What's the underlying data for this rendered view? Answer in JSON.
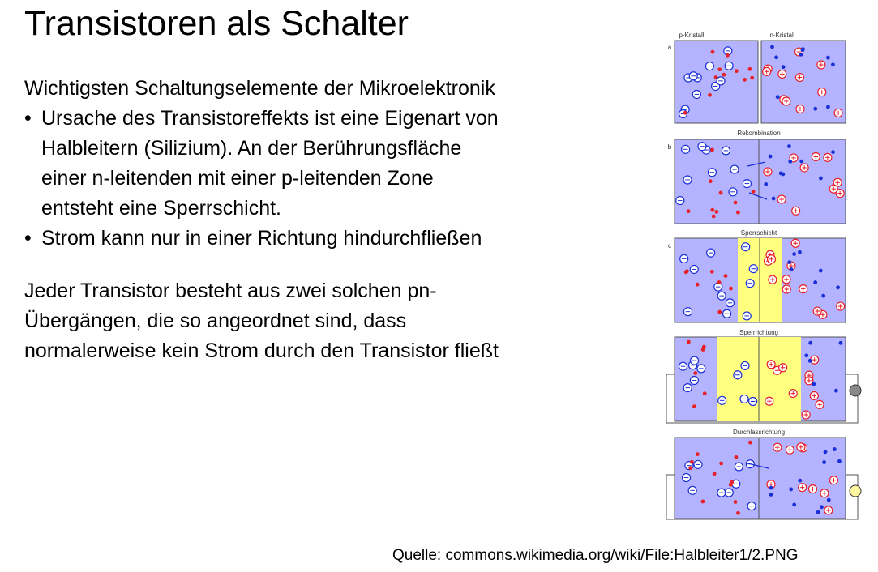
{
  "slide": {
    "title": "Transistoren als Schalter",
    "intro": "Wichtigsten Schaltungselemente der Mikroelektronik",
    "bullets": [
      {
        "lines": [
          "Ursache des Transistoreffekts ist eine Eigenart von",
          "Halbleitern (Silizium). An der Berührungsfläche",
          "einer n-leitenden mit einer p-leitenden Zone",
          "entsteht eine Sperrschicht."
        ]
      },
      {
        "lines": [
          "Strom kann nur in einer Richtung hindurchfließen"
        ]
      }
    ],
    "bullet_mark": "•",
    "paragraph": [
      "Jeder Transistor besteht aus zwei solchen pn-",
      "Übergängen, die so angeordnet sind, dass",
      "normalerweise kein Strom durch den Transistor fließt"
    ],
    "source": "Quelle: commons.wikimedia.org/wiki/File:Halbleiter1/2.PNG"
  },
  "figure": {
    "panel_letters": [
      "a",
      "b",
      "c"
    ],
    "labels": {
      "p_crystal": "p-Kristall",
      "n_crystal": "n-Kristall",
      "recombination": "Rekombination",
      "depletion": "Sperrschicht",
      "reverse": "Sperrrichtung",
      "forward": "Durchlassrichtung"
    },
    "colors": {
      "crystal": "#b3b3ff",
      "depletion": "#ffff80",
      "hole": "#e8202a",
      "electron": "#1a2fd6",
      "frame": "#555555"
    }
  }
}
